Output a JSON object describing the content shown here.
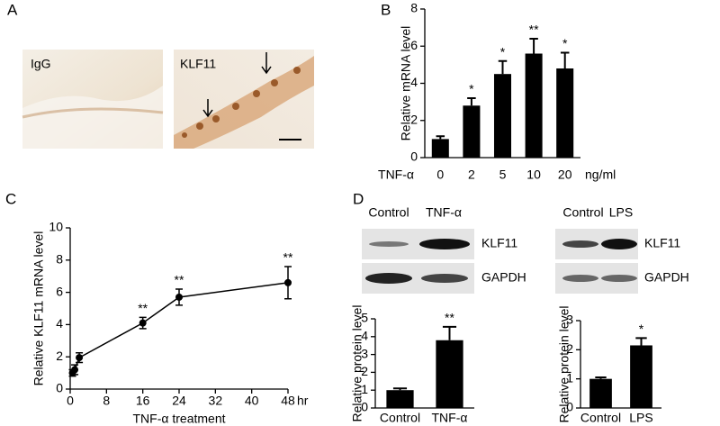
{
  "panel_labels": [
    "A",
    "B",
    "C",
    "D"
  ],
  "panel_a": {
    "image_labels": [
      "IgG",
      "KLF11"
    ]
  },
  "blots": [
    {
      "lanes": [
        "Control",
        "TNF-α"
      ],
      "proteins": [
        "KLF11",
        "GAPDH"
      ]
    },
    {
      "lanes": [
        "Control",
        "LPS"
      ],
      "proteins": [
        "KLF11",
        "GAPDH"
      ]
    }
  ],
  "chart_data": [
    {
      "type": "bar",
      "ylabel": "Relative mRNA level",
      "x_prefix": "TNF-α",
      "x_unit": "ng/ml",
      "categories": [
        "0",
        "2",
        "5",
        "10",
        "20"
      ],
      "values": [
        1.0,
        2.8,
        4.5,
        5.6,
        4.8
      ],
      "errors": [
        0.15,
        0.4,
        0.7,
        0.8,
        0.85
      ],
      "significance": [
        null,
        "*",
        "*",
        "**",
        "*"
      ],
      "color": "#000000",
      "ylim": [
        0,
        8
      ],
      "yticks": [
        0,
        2,
        4,
        6,
        8
      ]
    },
    {
      "type": "line",
      "ylabel": "Relative KLF11 mRNA level",
      "xlabel": "TNF-α treatment",
      "x_unit": "hr",
      "x": [
        0.5,
        1,
        2,
        16,
        24,
        48
      ],
      "values": [
        1.0,
        1.2,
        1.95,
        4.1,
        5.7,
        6.6
      ],
      "errors": [
        0.2,
        0.3,
        0.3,
        0.35,
        0.5,
        1.0
      ],
      "significance": [
        null,
        null,
        null,
        "**",
        "**",
        "**"
      ],
      "color": "#000000",
      "xlim": [
        0,
        48
      ],
      "xticks": [
        0,
        8,
        16,
        24,
        32,
        40,
        48
      ],
      "ylim": [
        0,
        10
      ],
      "yticks": [
        0,
        2,
        4,
        6,
        8,
        10
      ]
    },
    {
      "type": "bar",
      "ylabel": "Relative protein level",
      "categories": [
        "Control",
        "TNF-α"
      ],
      "values": [
        1.0,
        3.8
      ],
      "errors": [
        0.1,
        0.75
      ],
      "significance": [
        null,
        "**"
      ],
      "color": "#000000",
      "ylim": [
        0,
        5
      ],
      "yticks": [
        0,
        1,
        2,
        3,
        4,
        5
      ]
    },
    {
      "type": "bar",
      "ylabel": "Relative protein level",
      "categories": [
        "Control",
        "LPS"
      ],
      "values": [
        1.0,
        2.15
      ],
      "errors": [
        0.05,
        0.25
      ],
      "significance": [
        null,
        "*"
      ],
      "color": "#000000",
      "ylim": [
        0,
        3
      ],
      "yticks": [
        0,
        1,
        2,
        3
      ]
    }
  ]
}
